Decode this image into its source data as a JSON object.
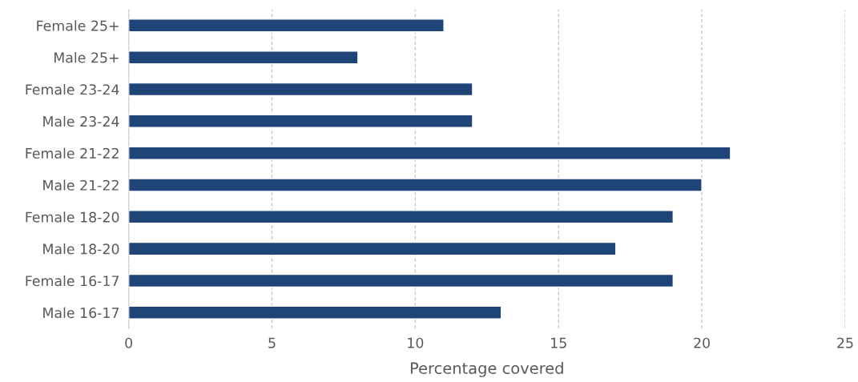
{
  "chart_data": {
    "type": "bar",
    "orientation": "horizontal",
    "xlabel": "Percentage covered",
    "categories": [
      "Female 25+",
      "Male 25+",
      "Female 23-24",
      "Male 23-24",
      "Female 21-22",
      "Male 21-22",
      "Female 18-20",
      "Male 18-20",
      "Female 16-17",
      "Male 16-17"
    ],
    "values": [
      11,
      8,
      12,
      12,
      21,
      20,
      19,
      17,
      19,
      13
    ],
    "color": "#1f4478",
    "xlim": [
      0,
      25
    ],
    "xticks": [
      0,
      5,
      10,
      15,
      20,
      25
    ],
    "grid": "x"
  }
}
